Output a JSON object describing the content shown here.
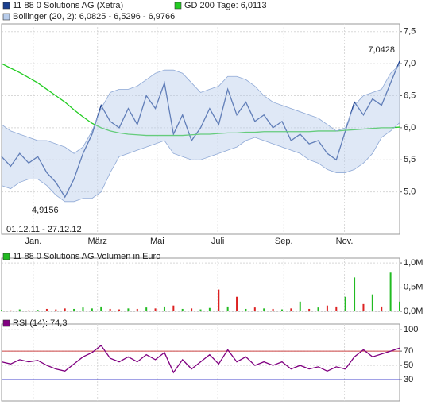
{
  "chart_data": [
    {
      "type": "line",
      "date_range": "01.12.11 - 27.12.12",
      "annotations": [
        "7,0428",
        "4,9156"
      ],
      "xlim": [
        0,
        44
      ],
      "xticks": [
        {
          "value": 3.5,
          "label": "Jan."
        },
        {
          "value": 10.6,
          "label": "März"
        },
        {
          "value": 17.2,
          "label": "Mai"
        },
        {
          "value": 23.9,
          "label": "Juli"
        },
        {
          "value": 31.2,
          "label": "Sep."
        },
        {
          "value": 37.9,
          "label": "Nov."
        }
      ],
      "ylim": [
        4.34,
        7.62
      ],
      "yticks": [
        {
          "value": 7.5,
          "label": "7,5"
        },
        {
          "value": 7.0,
          "label": "7,0"
        },
        {
          "value": 6.5,
          "label": "6,5"
        },
        {
          "value": 6.0,
          "label": "6,0"
        },
        {
          "value": 5.5,
          "label": "5,5"
        },
        {
          "value": 5.0,
          "label": "5,0"
        }
      ],
      "grid": true,
      "series": [
        {
          "name": "11 88 0 Solutions AG (Xetra)",
          "color": "#1a3f8f",
          "type": "line",
          "values": [
            5.55,
            5.4,
            5.6,
            5.45,
            5.55,
            5.3,
            5.15,
            4.92,
            5.2,
            5.6,
            5.9,
            6.35,
            6.1,
            6.0,
            6.3,
            6.05,
            6.5,
            6.3,
            6.7,
            5.9,
            6.2,
            5.8,
            6.0,
            6.3,
            6.05,
            6.6,
            6.2,
            6.4,
            6.1,
            6.2,
            6.0,
            6.1,
            5.8,
            5.9,
            5.75,
            5.8,
            5.6,
            5.5,
            5.95,
            6.4,
            6.2,
            6.45,
            6.35,
            6.7,
            7.04
          ]
        },
        {
          "name": "GD 200 Tage: 6,0113",
          "color": "#22cc22",
          "type": "line",
          "values": [
            7.0,
            6.93,
            6.86,
            6.78,
            6.7,
            6.6,
            6.5,
            6.4,
            6.28,
            6.17,
            6.07,
            6.0,
            5.95,
            5.92,
            5.9,
            5.89,
            5.88,
            5.88,
            5.88,
            5.88,
            5.88,
            5.89,
            5.9,
            5.9,
            5.91,
            5.92,
            5.92,
            5.93,
            5.93,
            5.94,
            5.94,
            5.94,
            5.94,
            5.94,
            5.94,
            5.95,
            5.95,
            5.95,
            5.96,
            5.97,
            5.98,
            5.99,
            6.0,
            6.0,
            6.01
          ]
        },
        {
          "name": "Bollinger (20, 2): 6,0825 - 6,5296 - 6,9766",
          "color": "#b8cdec",
          "type": "band",
          "values": [
            6.05,
            5.95,
            5.9,
            5.85,
            5.8,
            5.8,
            5.75,
            5.7,
            5.6,
            5.7,
            5.95,
            6.3,
            6.55,
            6.6,
            6.6,
            6.65,
            6.75,
            6.85,
            6.9,
            6.9,
            6.85,
            6.7,
            6.55,
            6.6,
            6.65,
            6.8,
            6.8,
            6.75,
            6.65,
            6.5,
            6.4,
            6.35,
            6.3,
            6.25,
            6.2,
            6.15,
            6.05,
            5.95,
            6.0,
            6.35,
            6.5,
            6.55,
            6.6,
            6.85,
            6.98
          ],
          "lower": [
            5.1,
            5.05,
            5.15,
            5.2,
            5.2,
            5.1,
            4.95,
            4.85,
            4.85,
            4.9,
            4.9,
            5.0,
            5.3,
            5.55,
            5.6,
            5.65,
            5.7,
            5.75,
            5.8,
            5.6,
            5.55,
            5.5,
            5.5,
            5.55,
            5.6,
            5.65,
            5.7,
            5.8,
            5.85,
            5.8,
            5.75,
            5.7,
            5.65,
            5.6,
            5.5,
            5.45,
            5.35,
            5.3,
            5.3,
            5.35,
            5.45,
            5.6,
            5.85,
            5.95,
            6.08
          ]
        }
      ]
    },
    {
      "type": "bar",
      "xlim": [
        0,
        44
      ],
      "ylim": [
        0,
        1.1
      ],
      "yticks": [
        {
          "value": 1.0,
          "label": "1,0M"
        },
        {
          "value": 0.5,
          "label": "0,5M"
        },
        {
          "value": 0,
          "label": "0,0M"
        }
      ],
      "grid": true,
      "down_color": "#dd2222",
      "series": [
        {
          "name": "11 88 0 Solutions AG Volumen in Euro",
          "color": "#22bb22",
          "type": "bar",
          "values": [
            0.03,
            0.02,
            0.04,
            0.02,
            0.03,
            0.05,
            0.04,
            0.06,
            0.05,
            0.08,
            0.06,
            0.1,
            0.05,
            0.04,
            0.06,
            0.05,
            0.08,
            0.06,
            0.1,
            0.12,
            0.05,
            0.06,
            0.04,
            0.07,
            0.45,
            0.1,
            0.3,
            0.05,
            0.08,
            0.06,
            0.05,
            0.04,
            0.06,
            0.2,
            0.05,
            0.08,
            0.12,
            0.1,
            0.3,
            0.7,
            0.15,
            0.35,
            0.1,
            0.8,
            0.2
          ]
        }
      ]
    },
    {
      "type": "line",
      "xlim": [
        0,
        44
      ],
      "ylim": [
        0,
        108
      ],
      "yticks": [
        100,
        70,
        50,
        30
      ],
      "grid": true,
      "reference_lines": [
        {
          "value": 70,
          "color": "#cc4444"
        },
        {
          "value": 30,
          "color": "#4444cc"
        }
      ],
      "series": [
        {
          "name": "RSI (14): 74,3",
          "color": "#800080",
          "type": "line",
          "values": [
            55,
            52,
            58,
            55,
            57,
            50,
            45,
            42,
            52,
            62,
            68,
            78,
            60,
            55,
            62,
            55,
            65,
            58,
            68,
            40,
            58,
            45,
            55,
            65,
            52,
            72,
            55,
            62,
            50,
            55,
            50,
            55,
            45,
            50,
            45,
            48,
            42,
            48,
            45,
            62,
            72,
            62,
            66,
            70,
            74.3
          ]
        }
      ]
    }
  ]
}
